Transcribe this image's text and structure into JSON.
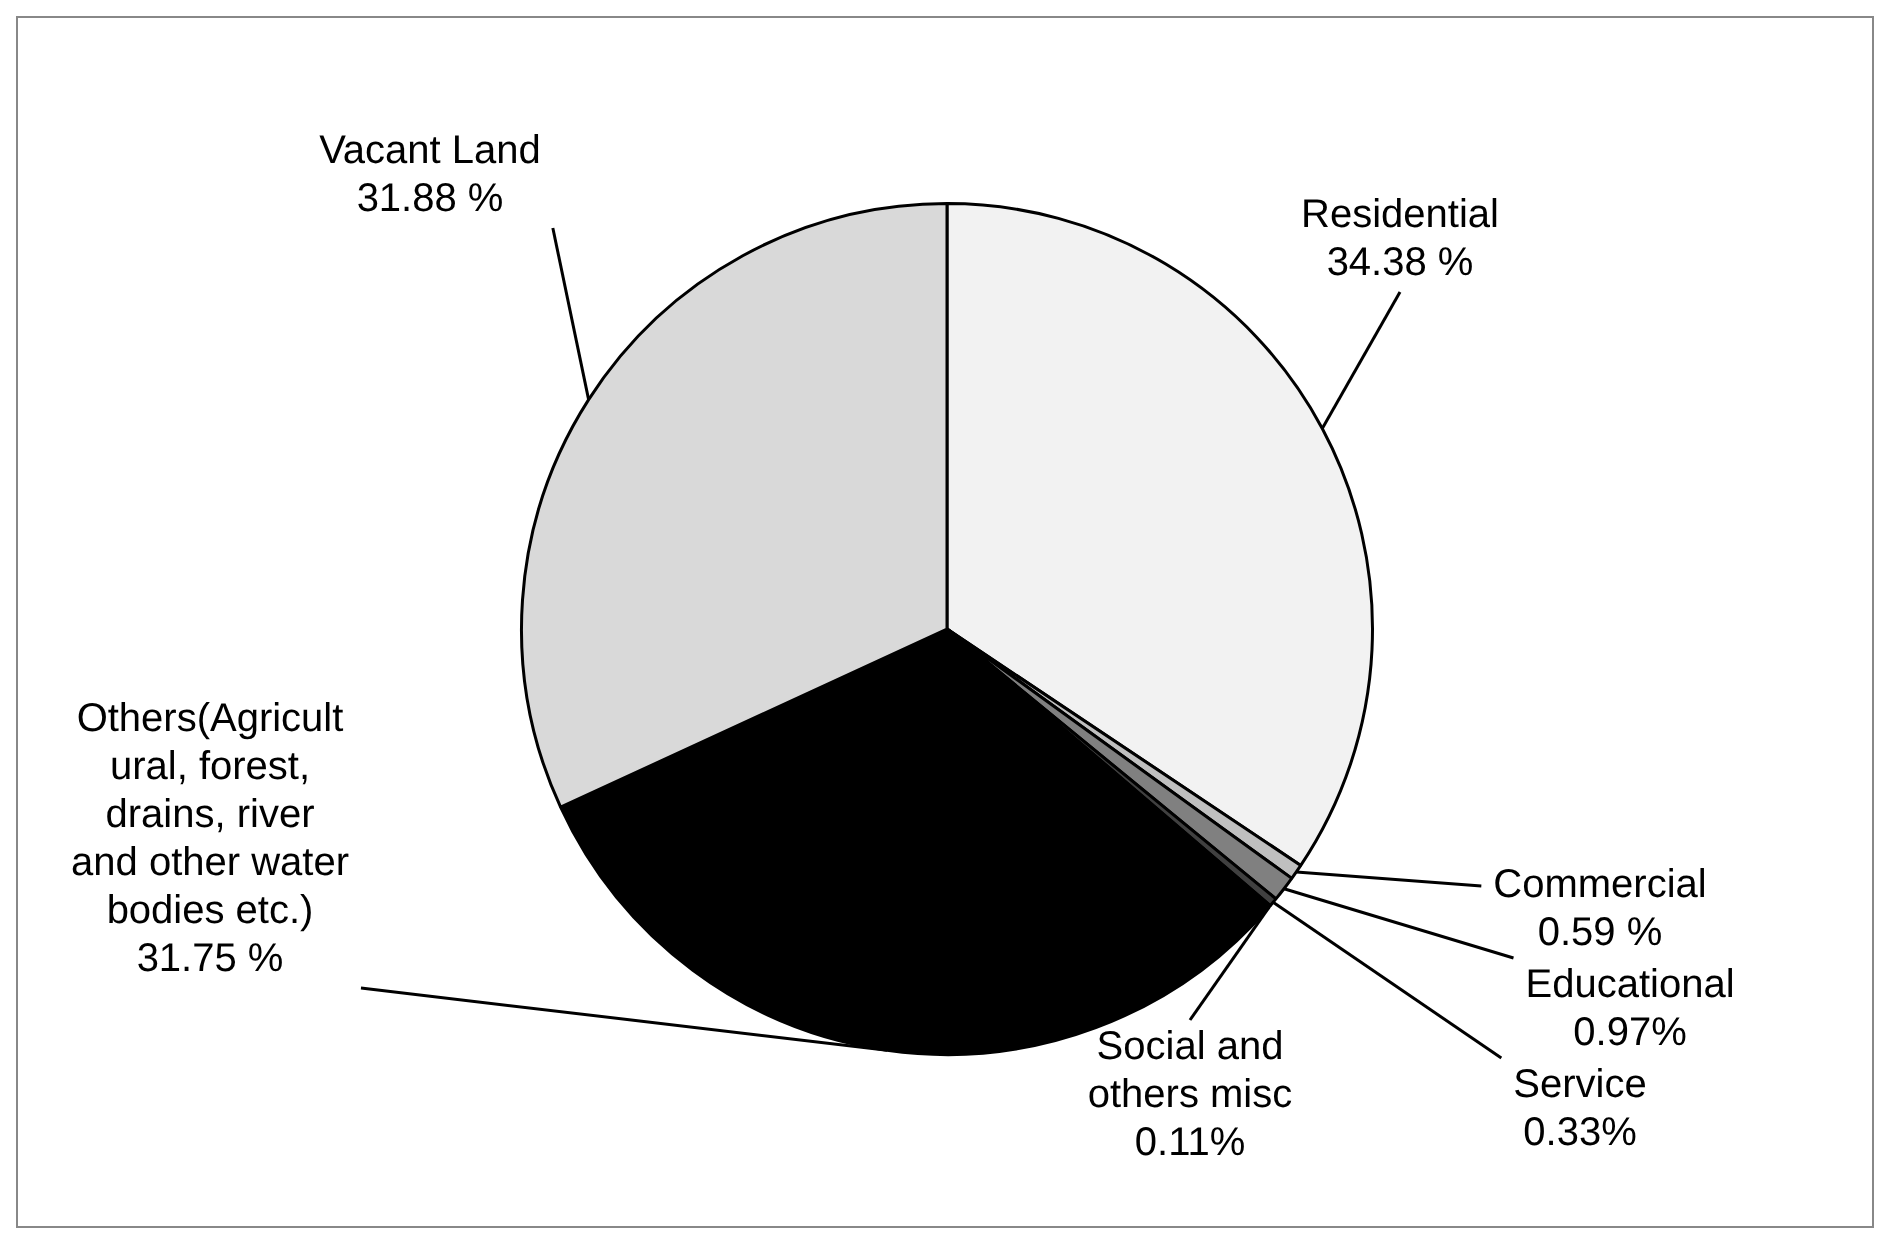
{
  "chart_data": {
    "type": "pie",
    "categories": [
      "Residential",
      "Commercial",
      "Educational",
      "Service",
      "Social and others misc",
      "Others(Agricultural, forest, drains, river and other water bodies etc.)",
      "Vacant Land"
    ],
    "values": [
      34.38,
      0.59,
      0.97,
      0.33,
      0.11,
      31.75,
      31.88
    ],
    "value_labels": [
      "34.38 %",
      "0.59 %",
      "0.97%",
      "0.33%",
      "0.11%",
      "31.75 %",
      "31.88 %"
    ],
    "colors": [
      "#f2f2f2",
      "#bfbfbf",
      "#808080",
      "#404040",
      "#ffffff",
      "#000000",
      "#d9d9d9"
    ],
    "legend": false
  }
}
